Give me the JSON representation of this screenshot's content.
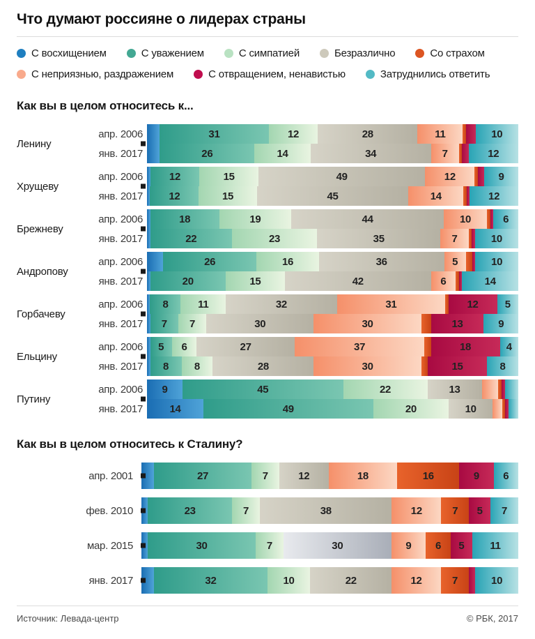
{
  "title": "Что думают россияне о лидерах страны",
  "legend": [
    {
      "row": 1,
      "label": "С восхищением",
      "color": "#1f7fc0"
    },
    {
      "row": 1,
      "label": "С уважением",
      "color": "#43a893"
    },
    {
      "row": 1,
      "label": "С симпатией",
      "color": "#b9e2c2"
    },
    {
      "row": 1,
      "label": "Безразлично",
      "color": "#cdc9bb"
    },
    {
      "row": 1,
      "label": "Со страхом",
      "color": "#dc5522"
    },
    {
      "row": 2,
      "label": "С неприязнью, раздражением",
      "color": "#f9aa8c"
    },
    {
      "row": 2,
      "label": "С отвращением, ненавистью",
      "color": "#c00d4e"
    },
    {
      "row": 2,
      "label": "Затруднились ответить",
      "color": "#53bac5"
    }
  ],
  "palette": {
    "admiration": [
      "#1a6db3",
      "#4fa3d8"
    ],
    "respect": [
      "#2f9c8a",
      "#7ac6b1"
    ],
    "sympathy": [
      "#a3d6b1",
      "#e9f4e1"
    ],
    "indifferent": [
      "#d6d3c7",
      "#b5b1a3"
    ],
    "indifferent_cool": [
      "#e8eaee",
      "#a9aeb8"
    ],
    "hostility": [
      "#f5906a",
      "#fcd7c3"
    ],
    "fear": [
      "#e8632b",
      "#c84316"
    ],
    "disgust": [
      "#a80a42",
      "#c62a58"
    ],
    "undecided": [
      "#29a4b5",
      "#b7e1e4"
    ]
  },
  "chart_data": {
    "type": "bar",
    "stacked": true,
    "orientation": "horizontal",
    "unit": "%",
    "segment_order": [
      "С восхищением",
      "С уважением",
      "С симпатией",
      "Безразлично",
      "С неприязнью, раздражением",
      "Со страхом",
      "С отвращением, ненавистью",
      "Затруднились ответить"
    ],
    "segment_keys": [
      "admiration",
      "respect",
      "sympathy",
      "indifferent",
      "hostility",
      "fear",
      "disgust",
      "undecided"
    ],
    "note": "labels array holds the value texts printed inside segments; empty string = unlabeled narrow segment (value estimated from pixels)",
    "sections": [
      {
        "heading": "Как вы в целом относитесь к...",
        "groups": [
          {
            "name": "Ленину",
            "rows": [
              {
                "date": "апр. 2006",
                "values": [
                  4,
                  31,
                  12,
                  28,
                  11,
                  1,
                  3,
                  10
                ],
                "labels": [
                  "",
                  "31",
                  "12",
                  "28",
                  "11",
                  "",
                  "",
                  "10"
                ]
              },
              {
                "date": "янв. 2017",
                "values": [
                  4,
                  26,
                  14,
                  34,
                  7,
                  1,
                  2,
                  12
                ],
                "labels": [
                  "",
                  "26",
                  "14",
                  "34",
                  "7",
                  "",
                  "",
                  "12"
                ]
              }
            ]
          },
          {
            "name": "Хрущеву",
            "rows": [
              {
                "date": "апр. 2006",
                "values": [
                  1,
                  12,
                  15,
                  49,
                  12,
                  1,
                  2,
                  9
                ],
                "labels": [
                  "",
                  "12",
                  "15",
                  "49",
                  "12",
                  "",
                  "",
                  "9"
                ]
              },
              {
                "date": "янв. 2017",
                "values": [
                  1,
                  12,
                  15,
                  45,
                  14,
                  1,
                  1,
                  12
                ],
                "labels": [
                  "",
                  "12",
                  "15",
                  "45",
                  "14",
                  "",
                  "",
                  "12"
                ]
              }
            ]
          },
          {
            "name": "Брежневу",
            "rows": [
              {
                "date": "апр. 2006",
                "values": [
                  1,
                  18,
                  19,
                  44,
                  10,
                  1,
                  1,
                  6
                ],
                "labels": [
                  "",
                  "18",
                  "19",
                  "44",
                  "10",
                  "",
                  "",
                  "6"
                ]
              },
              {
                "date": "янв. 2017",
                "values": [
                  1,
                  22,
                  23,
                  35,
                  7,
                  1,
                  1,
                  10
                ],
                "labels": [
                  "",
                  "22",
                  "23",
                  "35",
                  "7",
                  "",
                  "",
                  "10"
                ]
              }
            ]
          },
          {
            "name": "Андропову",
            "rows": [
              {
                "date": "апр. 2006",
                "values": [
                  5,
                  26,
                  16,
                  36,
                  5,
                  2,
                  1,
                  10
                ],
                "labels": [
                  "",
                  "26",
                  "16",
                  "36",
                  "5",
                  "",
                  "",
                  "10"
                ]
              },
              {
                "date": "янв. 2017",
                "values": [
                  1,
                  20,
                  15,
                  42,
                  6,
                  1,
                  1,
                  14
                ],
                "labels": [
                  "",
                  "20",
                  "15",
                  "42",
                  "6",
                  "",
                  "",
                  "14"
                ]
              }
            ]
          },
          {
            "name": "Горбачеву",
            "rows": [
              {
                "date": "апр. 2006",
                "values": [
                  1,
                  8,
                  11,
                  32,
                  31,
                  1,
                  12,
                  5
                ],
                "labels": [
                  "",
                  "8",
                  "11",
                  "32",
                  "31",
                  "",
                  "12",
                  "5"
                ]
              },
              {
                "date": "янв. 2017",
                "values": [
                  1,
                  7,
                  7,
                  30,
                  30,
                  3,
                  13,
                  9
                ],
                "labels": [
                  "",
                  "7",
                  "7",
                  "30",
                  "30",
                  "",
                  "13",
                  "9"
                ]
              }
            ]
          },
          {
            "name": "Ельцину",
            "rows": [
              {
                "date": "апр. 2006",
                "values": [
                  1,
                  5,
                  6,
                  27,
                  37,
                  2,
                  18,
                  4
                ],
                "labels": [
                  "",
                  "5",
                  "6",
                  "27",
                  "37",
                  "",
                  "18",
                  "4"
                ]
              },
              {
                "date": "янв. 2017",
                "values": [
                  1,
                  8,
                  8,
                  28,
                  30,
                  2,
                  15,
                  8
                ],
                "labels": [
                  "",
                  "8",
                  "8",
                  "28",
                  "30",
                  "",
                  "15",
                  "8"
                ]
              }
            ]
          },
          {
            "name": "Путину",
            "rows": [
              {
                "date": "апр. 2006",
                "values": [
                  9,
                  45,
                  22,
                  13,
                  5,
                  1,
                  1,
                  4
                ],
                "labels": [
                  "9",
                  "45",
                  "22",
                  "13",
                  "",
                  "",
                  "",
                  ""
                ]
              },
              {
                "date": "янв. 2017",
                "values": [
                  14,
                  49,
                  20,
                  10,
                  3,
                  1,
                  1,
                  3
                ],
                "labels": [
                  "14",
                  "49",
                  "20",
                  "10",
                  "",
                  "",
                  "",
                  ""
                ]
              }
            ]
          }
        ]
      },
      {
        "heading": "Как вы в целом относитесь к Сталину?",
        "rows": [
          {
            "date": "апр. 2001",
            "values": [
              4,
              27,
              7,
              12,
              18,
              16,
              9,
              6
            ],
            "labels": [
              "",
              "27",
              "7",
              "12",
              "18",
              "16",
              "9",
              "6"
            ],
            "cool_gray": false
          },
          {
            "date": "фев. 2010",
            "values": [
              2,
              23,
              7,
              38,
              12,
              7,
              5,
              7
            ],
            "labels": [
              "",
              "23",
              "7",
              "38",
              "12",
              "7",
              "5",
              "7"
            ],
            "cool_gray": false
          },
          {
            "date": "мар. 2015",
            "values": [
              2,
              30,
              7,
              30,
              9,
              6,
              5,
              11
            ],
            "labels": [
              "",
              "30",
              "7",
              "30",
              "9",
              "6",
              "5",
              "11"
            ],
            "cool_gray": true
          },
          {
            "date": "янв. 2017",
            "values": [
              4,
              32,
              10,
              22,
              12,
              7,
              2,
              10
            ],
            "labels": [
              "",
              "32",
              "10",
              "22",
              "12",
              "7",
              "",
              "10"
            ],
            "cool_gray": false
          }
        ]
      }
    ]
  },
  "footer": {
    "source": "Источник: Левада-центр",
    "copyright": "© РБК, 2017"
  }
}
